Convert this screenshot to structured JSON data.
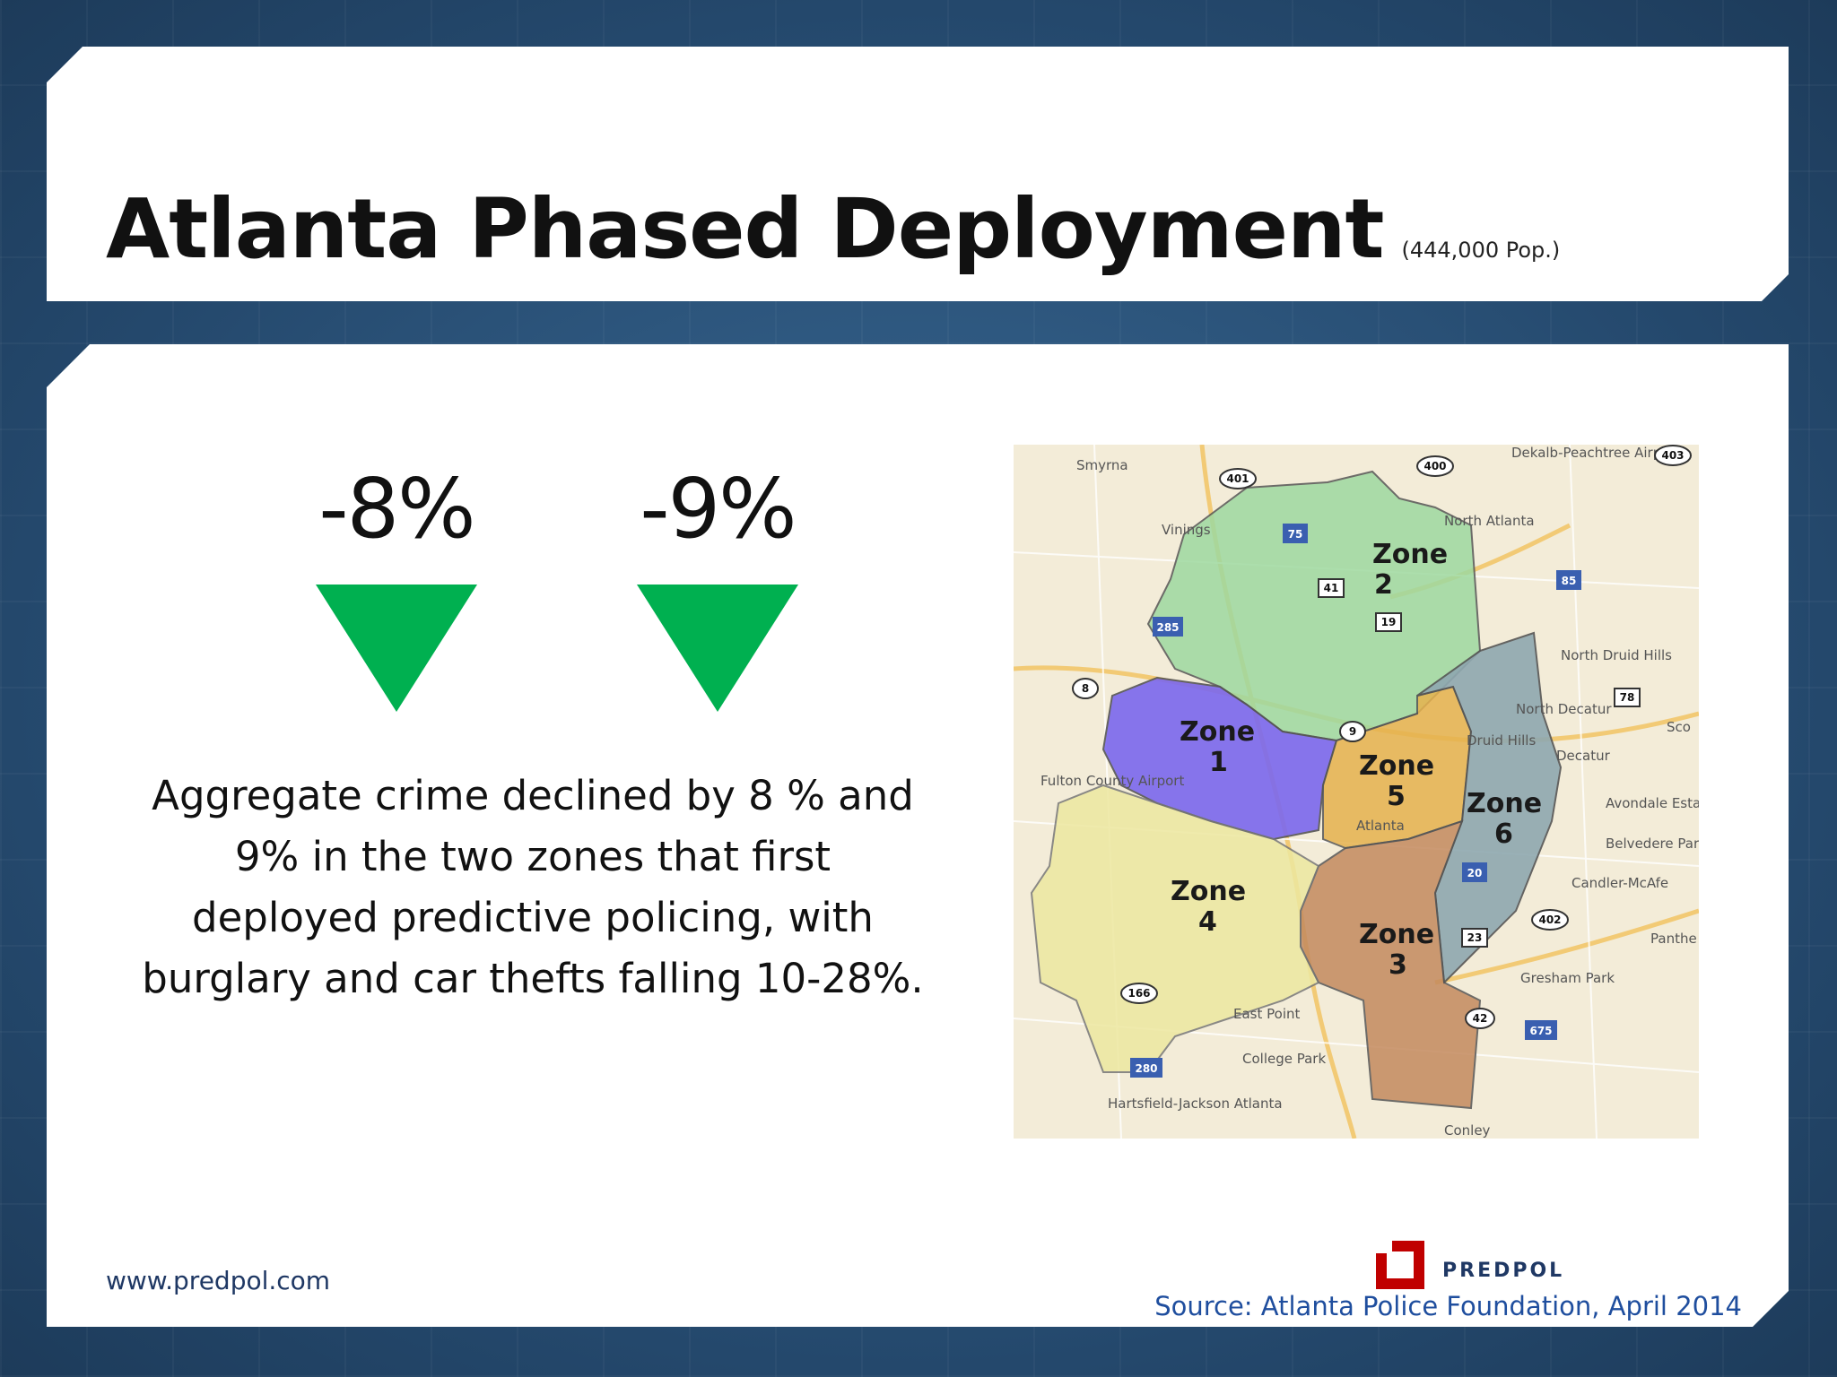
{
  "title": "Atlanta Phased Deployment",
  "subtitle": "(444,000 Pop.)",
  "stats": [
    {
      "value": "-8%"
    },
    {
      "value": "-9%"
    }
  ],
  "description": "Aggregate crime declined by 8 % and 9% in the two zones that first deployed predictive policing, with burglary and car thefts falling 10-28%.",
  "colors": {
    "down_arrow": "#00b050",
    "zone_1": "#7b68ee",
    "zone_2": "#9ed9a0",
    "zone_3": "#c48a5e",
    "zone_4": "#ede8a0",
    "zone_5": "#e6b24e",
    "zone_6": "#8fa8b0",
    "logo": "#c00000"
  },
  "map": {
    "zones": [
      {
        "word": "Zone",
        "number": "1"
      },
      {
        "word": "Zone",
        "number": "2"
      },
      {
        "word": "Zone",
        "number": "3"
      },
      {
        "word": "Zone",
        "number": "4"
      },
      {
        "word": "Zone",
        "number": "5"
      },
      {
        "word": "Zone",
        "number": "6"
      }
    ],
    "places": [
      "Smyrna",
      "Vinings",
      "North Atlanta",
      "Dekalb-Peachtree Airport",
      "North Druid Hills",
      "North Decatur",
      "Druid Hills",
      "Decatur",
      "Avondale Estates",
      "Belvedere Park",
      "Candler-McAfe",
      "Panthe",
      "Gresham Park",
      "East Point",
      "College Park",
      "Hartsfield-Jackson Atlanta",
      "Conley",
      "Atlanta",
      "Fulton County Airport",
      "Sco"
    ],
    "highways": [
      "401",
      "400",
      "403",
      "75",
      "85",
      "285",
      "41",
      "19",
      "8",
      "78",
      "20",
      "166",
      "402",
      "42",
      "675",
      "23",
      "9",
      "280"
    ]
  },
  "footer": {
    "url": "www.predpol.com",
    "logo_text": "PREDPOL",
    "source": "Source: Atlanta Police Foundation, April 2014"
  }
}
